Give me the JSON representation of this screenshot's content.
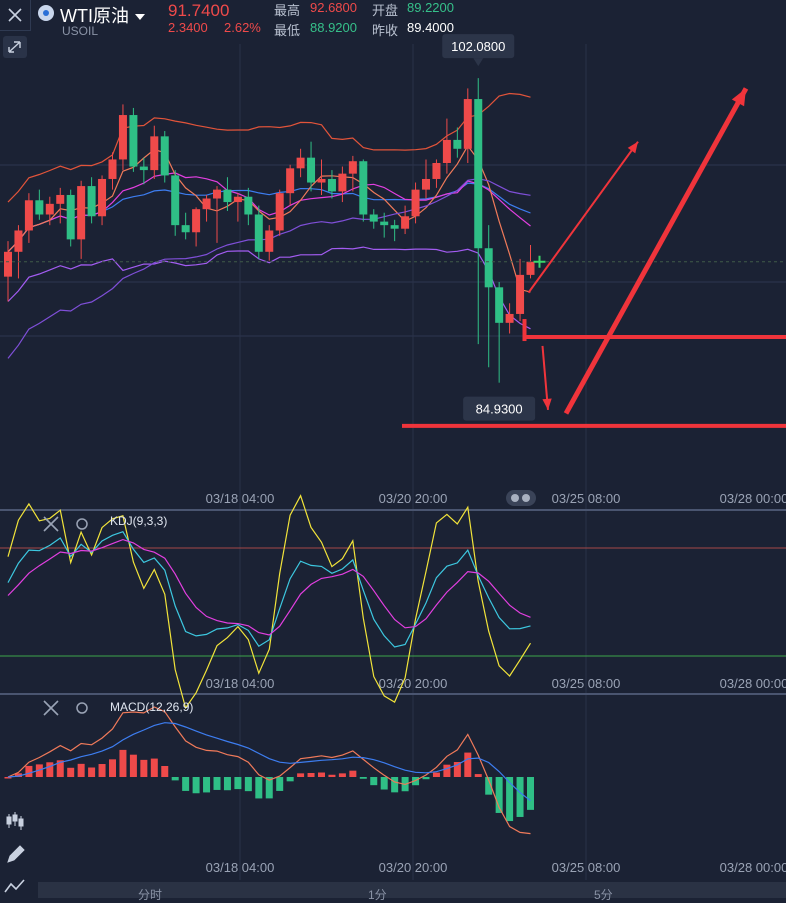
{
  "header": {
    "name": "WTI原油",
    "code": "USOIL",
    "last": "91.7400",
    "change": "2.3400",
    "change_pct": "2.62%",
    "high_label": "最高",
    "high": "92.6800",
    "open_label": "开盘",
    "open": "89.2200",
    "low_label": "最低",
    "low": "88.9200",
    "prev_label": "昨收",
    "prev": "89.4000"
  },
  "colors": {
    "up": "#ef4a4a",
    "down": "#2fbf86",
    "background": "#1b2234",
    "annotation": "#f0343b"
  },
  "icons": [
    "close-icon",
    "expand-icon",
    "symbol-icon",
    "dropdown-caret-icon",
    "settings-icon",
    "candlestick-tool-icon",
    "pencil-icon",
    "indicator-icon"
  ],
  "chart_data": [
    {
      "type": "candlestick",
      "ylim": [
        79,
        104
      ],
      "x_ticks": [
        "03/18 04:00",
        "03/20 20:00",
        "03/25 08:00",
        "03/28 00:00"
      ],
      "price_labels": [
        "102.0800",
        "84.9300"
      ],
      "current_price_marker": "91.7400",
      "overlays": [
        "upper band",
        "middle band",
        "lower band",
        "MA (orange)",
        "MA (magenta)",
        "MA (blue)",
        "MA (purple)"
      ],
      "annotations": [
        "red arrows up",
        "red arrow down",
        "horizontal support lines"
      ],
      "ohlc": [
        [
          90.9,
          92.9,
          89.5,
          92.3
        ],
        [
          92.3,
          93.8,
          90.8,
          93.5
        ],
        [
          93.5,
          95.6,
          92.8,
          95.2
        ],
        [
          95.2,
          95.8,
          94.1,
          94.4
        ],
        [
          94.4,
          95.4,
          93.8,
          95.0
        ],
        [
          95.0,
          95.9,
          93.9,
          95.5
        ],
        [
          95.5,
          95.8,
          92.6,
          93.0
        ],
        [
          93.0,
          96.3,
          91.9,
          96.0
        ],
        [
          96.0,
          96.5,
          93.9,
          94.3
        ],
        [
          94.3,
          96.6,
          93.8,
          96.4
        ],
        [
          96.4,
          97.9,
          95.8,
          97.5
        ],
        [
          97.5,
          100.6,
          96.9,
          100.0
        ],
        [
          100.0,
          100.4,
          96.8,
          97.1
        ],
        [
          97.1,
          97.6,
          96.1,
          96.9
        ],
        [
          96.9,
          99.4,
          96.4,
          98.8
        ],
        [
          98.8,
          99.1,
          96.2,
          96.6
        ],
        [
          96.6,
          96.9,
          93.2,
          93.8
        ],
        [
          93.8,
          94.5,
          93.0,
          93.4
        ],
        [
          93.4,
          94.8,
          92.6,
          94.7
        ],
        [
          94.7,
          95.5,
          94.0,
          95.3
        ],
        [
          95.3,
          96.0,
          92.8,
          95.8
        ],
        [
          95.8,
          96.5,
          94.6,
          95.1
        ],
        [
          95.1,
          95.6,
          94.0,
          95.4
        ],
        [
          95.4,
          95.9,
          93.8,
          94.4
        ],
        [
          94.4,
          94.9,
          91.9,
          92.3
        ],
        [
          92.3,
          93.8,
          91.8,
          93.5
        ],
        [
          93.5,
          95.8,
          93.2,
          95.6
        ],
        [
          95.6,
          97.2,
          94.9,
          97.0
        ],
        [
          97.0,
          98.1,
          96.5,
          97.6
        ],
        [
          97.6,
          98.5,
          95.7,
          96.2
        ],
        [
          96.2,
          97.5,
          95.5,
          96.4
        ],
        [
          96.4,
          96.9,
          95.3,
          95.7
        ],
        [
          95.7,
          97.1,
          95.1,
          96.7
        ],
        [
          96.7,
          97.7,
          95.7,
          97.4
        ],
        [
          97.4,
          97.5,
          94.0,
          94.4
        ],
        [
          94.4,
          94.7,
          93.6,
          94.0
        ],
        [
          94.0,
          94.5,
          93.1,
          93.8
        ],
        [
          93.8,
          94.1,
          92.9,
          93.6
        ],
        [
          93.6,
          94.9,
          93.3,
          94.3
        ],
        [
          94.3,
          96.2,
          93.9,
          95.8
        ],
        [
          95.8,
          97.5,
          95.3,
          96.4
        ],
        [
          96.4,
          97.5,
          95.9,
          97.3
        ],
        [
          97.3,
          99.8,
          96.7,
          98.6
        ],
        [
          98.6,
          99.3,
          97.6,
          98.1
        ],
        [
          98.1,
          101.5,
          97.3,
          100.9
        ],
        [
          100.9,
          102.08,
          87.1,
          92.5
        ],
        [
          92.5,
          93.8,
          85.8,
          90.3
        ],
        [
          90.3,
          90.6,
          84.93,
          88.3
        ],
        [
          88.3,
          89.4,
          87.7,
          88.8
        ],
        [
          88.8,
          91.9,
          88.4,
          91.0
        ],
        [
          91.0,
          92.68,
          90.8,
          91.74
        ]
      ]
    },
    {
      "type": "line",
      "indicator": "KDJ(9,3,3)",
      "x_ticks": [
        "03/18 04:00",
        "03/20 20:00",
        "03/25 08:00",
        "03/28 00:00"
      ],
      "ylim": [
        0,
        100
      ]
    },
    {
      "type": "bar",
      "indicator": "MACD(12,26,9)",
      "x_ticks": [
        "03/18 04:00",
        "03/20 20:00",
        "03/25 08:00",
        "03/28 00:00"
      ]
    }
  ],
  "tabs": [
    {
      "label": "分时"
    },
    {
      "label": "1分"
    },
    {
      "label": "5分"
    }
  ]
}
